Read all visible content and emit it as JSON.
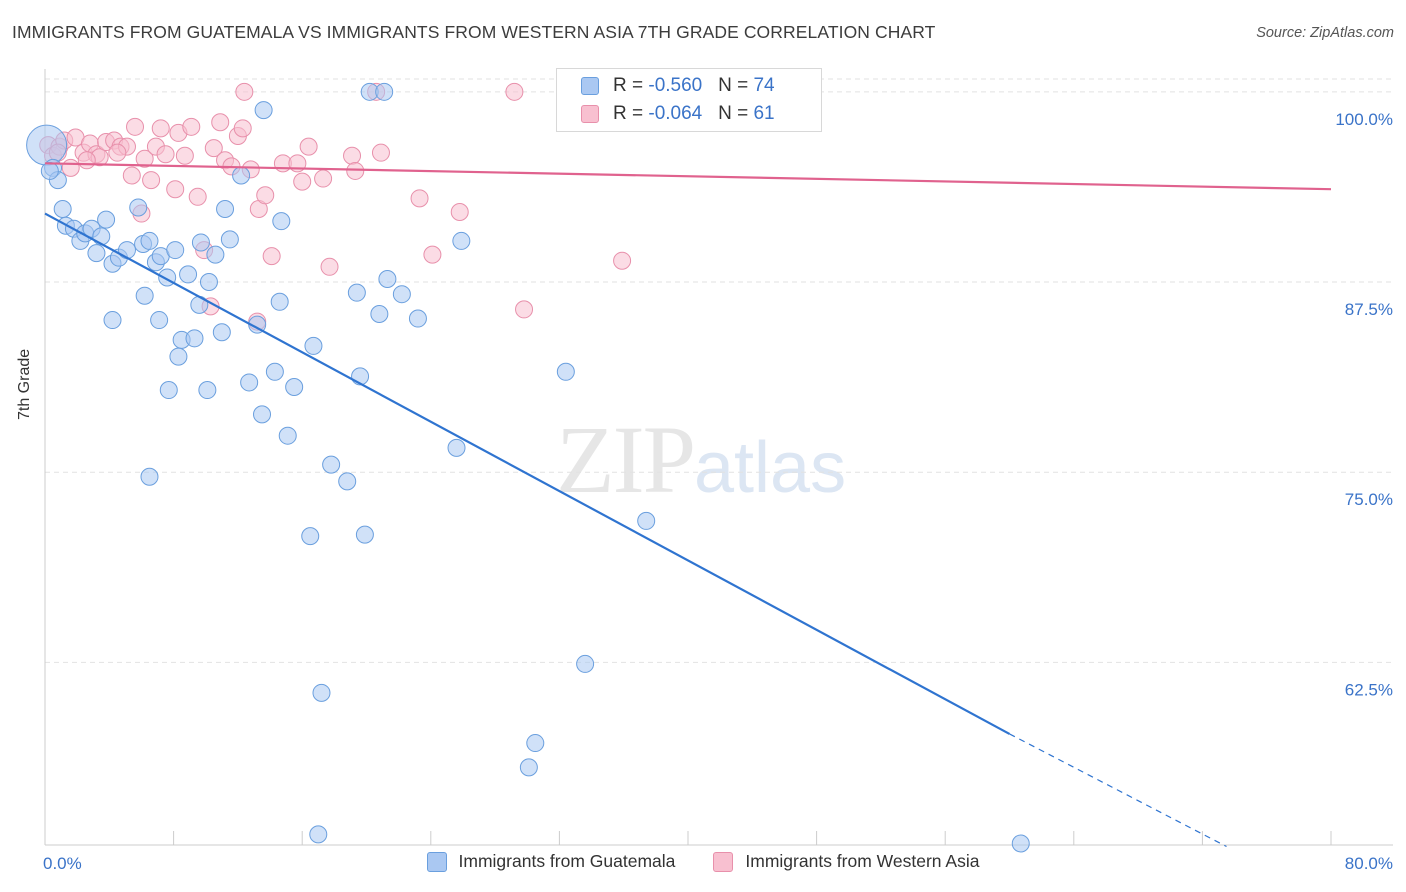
{
  "title": "IMMIGRANTS FROM GUATEMALA VS IMMIGRANTS FROM WESTERN ASIA 7TH GRADE CORRELATION CHART",
  "source": "Source: ZipAtlas.com",
  "watermark": {
    "zip": "ZIP",
    "atlas": "atlas"
  },
  "legend": {
    "r_label": "R = ",
    "n_label": "N = ",
    "rows": [
      {
        "r": "-0.560",
        "n": "74",
        "color": "#aac8f2"
      },
      {
        "r": "-0.064",
        "n": "61",
        "color": "#f8b8cb"
      }
    ]
  },
  "colors": {
    "blue_fill": "#aac8f2",
    "blue_stroke": "#6a9fde",
    "blue_line": "#2f74d0",
    "pink_fill": "#f8c0d0",
    "pink_stroke": "#e890ab",
    "pink_line": "#e0628e",
    "tick_text": "#3a73c8",
    "grid": "#e2e2e2"
  },
  "chart_data": {
    "type": "scatter",
    "title": "IMMIGRANTS FROM GUATEMALA VS IMMIGRANTS FROM WESTERN ASIA 7TH GRADE CORRELATION CHART",
    "xlabel": "",
    "ylabel": "7th Grade",
    "xlim": [
      0,
      80
    ],
    "ylim": [
      50.5,
      101.5
    ],
    "x_tick_labels": [
      "0.0%",
      "80.0%"
    ],
    "y_ticks": [
      62.5,
      75.0,
      87.5,
      100.0
    ],
    "y_tick_labels": [
      "62.5%",
      "75.0%",
      "87.5%",
      "100.0%"
    ],
    "grid": true,
    "legend_position": "bottom",
    "series": [
      {
        "name": "Immigrants from Guatemala",
        "color": "#aac8f2",
        "points": [
          [
            0.1,
            96.5
          ],
          [
            0.5,
            95.0
          ],
          [
            0.8,
            94.2
          ],
          [
            1.1,
            92.3
          ],
          [
            1.3,
            91.2
          ],
          [
            1.8,
            91.0
          ],
          [
            2.2,
            90.2
          ],
          [
            2.5,
            90.7
          ],
          [
            2.9,
            91.0
          ],
          [
            3.2,
            89.4
          ],
          [
            3.5,
            90.5
          ],
          [
            3.8,
            91.6
          ],
          [
            4.2,
            88.7
          ],
          [
            4.6,
            89.1
          ],
          [
            5.1,
            89.6
          ],
          [
            5.8,
            92.4
          ],
          [
            6.1,
            90.0
          ],
          [
            6.5,
            90.2
          ],
          [
            6.9,
            88.8
          ],
          [
            7.2,
            89.2
          ],
          [
            7.6,
            87.8
          ],
          [
            8.1,
            89.6
          ],
          [
            8.9,
            88.0
          ],
          [
            9.7,
            90.1
          ],
          [
            10.2,
            87.5
          ],
          [
            10.6,
            89.3
          ],
          [
            11.2,
            92.3
          ],
          [
            11.5,
            90.3
          ],
          [
            12.2,
            94.5
          ],
          [
            13.6,
            98.8
          ],
          [
            14.7,
            91.5
          ],
          [
            4.2,
            85.0
          ],
          [
            6.2,
            86.6
          ],
          [
            7.1,
            85.0
          ],
          [
            8.5,
            83.7
          ],
          [
            8.3,
            82.6
          ],
          [
            9.3,
            83.8
          ],
          [
            9.6,
            86.0
          ],
          [
            11.0,
            84.2
          ],
          [
            13.2,
            84.7
          ],
          [
            14.6,
            86.2
          ],
          [
            16.7,
            83.3
          ],
          [
            19.4,
            86.8
          ],
          [
            19.6,
            81.3
          ],
          [
            20.8,
            85.4
          ],
          [
            21.3,
            87.7
          ],
          [
            22.2,
            86.7
          ],
          [
            23.2,
            85.1
          ],
          [
            25.9,
            90.2
          ],
          [
            32.4,
            81.6
          ],
          [
            7.7,
            80.4
          ],
          [
            10.1,
            80.4
          ],
          [
            12.7,
            80.9
          ],
          [
            13.5,
            78.8
          ],
          [
            14.3,
            81.6
          ],
          [
            15.1,
            77.4
          ],
          [
            15.5,
            80.6
          ],
          [
            17.8,
            75.5
          ],
          [
            18.8,
            74.4
          ],
          [
            25.6,
            76.6
          ],
          [
            6.5,
            74.7
          ],
          [
            16.5,
            70.8
          ],
          [
            19.9,
            70.9
          ],
          [
            37.4,
            71.8
          ],
          [
            33.6,
            62.4
          ],
          [
            17.2,
            60.5
          ],
          [
            30.5,
            57.2
          ],
          [
            30.1,
            55.6
          ],
          [
            17.0,
            51.2
          ],
          [
            60.7,
            50.6
          ],
          [
            20.2,
            100.0
          ],
          [
            21.1,
            100.0
          ],
          [
            36.5,
            100.0
          ],
          [
            0.3,
            94.8
          ]
        ]
      },
      {
        "name": "Immigrants from Western Asia",
        "color": "#f8b8cb",
        "points": [
          [
            0.2,
            96.5
          ],
          [
            0.5,
            95.8
          ],
          [
            0.9,
            96.4
          ],
          [
            1.2,
            96.8
          ],
          [
            1.6,
            95.0
          ],
          [
            1.9,
            97.0
          ],
          [
            2.4,
            96.0
          ],
          [
            2.8,
            96.6
          ],
          [
            3.2,
            95.9
          ],
          [
            3.4,
            95.7
          ],
          [
            3.8,
            96.7
          ],
          [
            4.3,
            96.8
          ],
          [
            4.7,
            96.4
          ],
          [
            5.1,
            96.4
          ],
          [
            5.4,
            94.5
          ],
          [
            5.6,
            97.7
          ],
          [
            6.2,
            95.6
          ],
          [
            6.6,
            94.2
          ],
          [
            6.9,
            96.4
          ],
          [
            7.2,
            97.6
          ],
          [
            7.5,
            95.9
          ],
          [
            8.1,
            93.6
          ],
          [
            8.3,
            97.3
          ],
          [
            8.7,
            95.8
          ],
          [
            9.1,
            97.7
          ],
          [
            9.5,
            93.1
          ],
          [
            9.9,
            89.6
          ],
          [
            10.5,
            96.3
          ],
          [
            10.9,
            98.0
          ],
          [
            11.2,
            95.5
          ],
          [
            11.6,
            95.1
          ],
          [
            12.0,
            97.1
          ],
          [
            12.3,
            97.6
          ],
          [
            12.8,
            94.9
          ],
          [
            13.3,
            92.3
          ],
          [
            13.7,
            93.2
          ],
          [
            14.1,
            89.2
          ],
          [
            14.8,
            95.3
          ],
          [
            15.7,
            95.3
          ],
          [
            16.0,
            94.1
          ],
          [
            16.4,
            96.4
          ],
          [
            17.3,
            94.3
          ],
          [
            17.7,
            88.5
          ],
          [
            19.1,
            95.8
          ],
          [
            19.3,
            94.8
          ],
          [
            20.9,
            96.0
          ],
          [
            23.3,
            93.0
          ],
          [
            24.1,
            89.3
          ],
          [
            25.8,
            92.1
          ],
          [
            29.8,
            85.7
          ],
          [
            35.9,
            88.9
          ],
          [
            10.3,
            85.9
          ],
          [
            13.2,
            84.9
          ],
          [
            12.4,
            100.0
          ],
          [
            20.6,
            100.0
          ],
          [
            29.2,
            100.0
          ],
          [
            43.5,
            100.0
          ],
          [
            0.8,
            96.0
          ],
          [
            2.6,
            95.5
          ],
          [
            4.5,
            96.0
          ],
          [
            6.0,
            92.0
          ]
        ]
      }
    ],
    "trend_lines": [
      {
        "series": "Immigrants from Guatemala",
        "x": [
          0,
          60
        ],
        "y": [
          92.0,
          57.8
        ],
        "dashed_extension_x": [
          60,
          73.5
        ],
        "dashed_extension_y": [
          57.8,
          50.4
        ]
      },
      {
        "series": "Immigrants from Western Asia",
        "x": [
          0,
          80
        ],
        "y": [
          95.3,
          93.6
        ]
      }
    ]
  }
}
